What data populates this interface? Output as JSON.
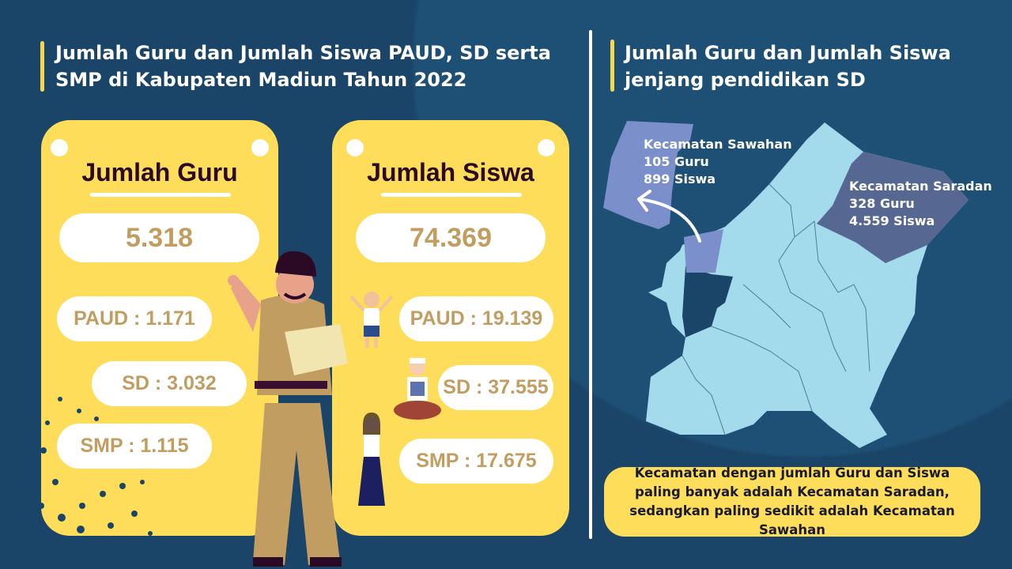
{
  "left_title": "Jumlah Guru dan Jumlah Siswa PAUD, SD serta SMP di Kabupaten Madiun Tahun 2022",
  "right_title": "Jumlah Guru dan Jumlah Siswa jenjang pendidikan SD",
  "guru": {
    "title": "Jumlah Guru",
    "total": "5.318",
    "paud": "PAUD : 1.171",
    "sd": "SD : 3.032",
    "smp": "SMP : 1.115"
  },
  "siswa": {
    "title": "Jumlah Siswa",
    "total": "74.369",
    "paud": "PAUD : 19.139",
    "sd": "SD : 37.555",
    "smp": "SMP : 17.675"
  },
  "map": {
    "sawahan": {
      "name": "Kecamatan Sawahan",
      "guru": "105 Guru",
      "siswa": "899 Siswa"
    },
    "saradan": {
      "name": "Kecamatan Saradan",
      "guru": "328 Guru",
      "siswa": "4.559 Siswa"
    }
  },
  "note": "Kecamatan dengan jumlah Guru dan Siswa paling banyak adalah Kecamatan Saradan, sedangkan paling sedikit adalah Kecamatan Sawahan",
  "colors": {
    "background": "#1b4568",
    "card": "#fedd5a",
    "value_text": "#c29d62",
    "map_base": "#a3dbed",
    "sawahan": "#7b8fcb",
    "saradan": "#566892"
  }
}
